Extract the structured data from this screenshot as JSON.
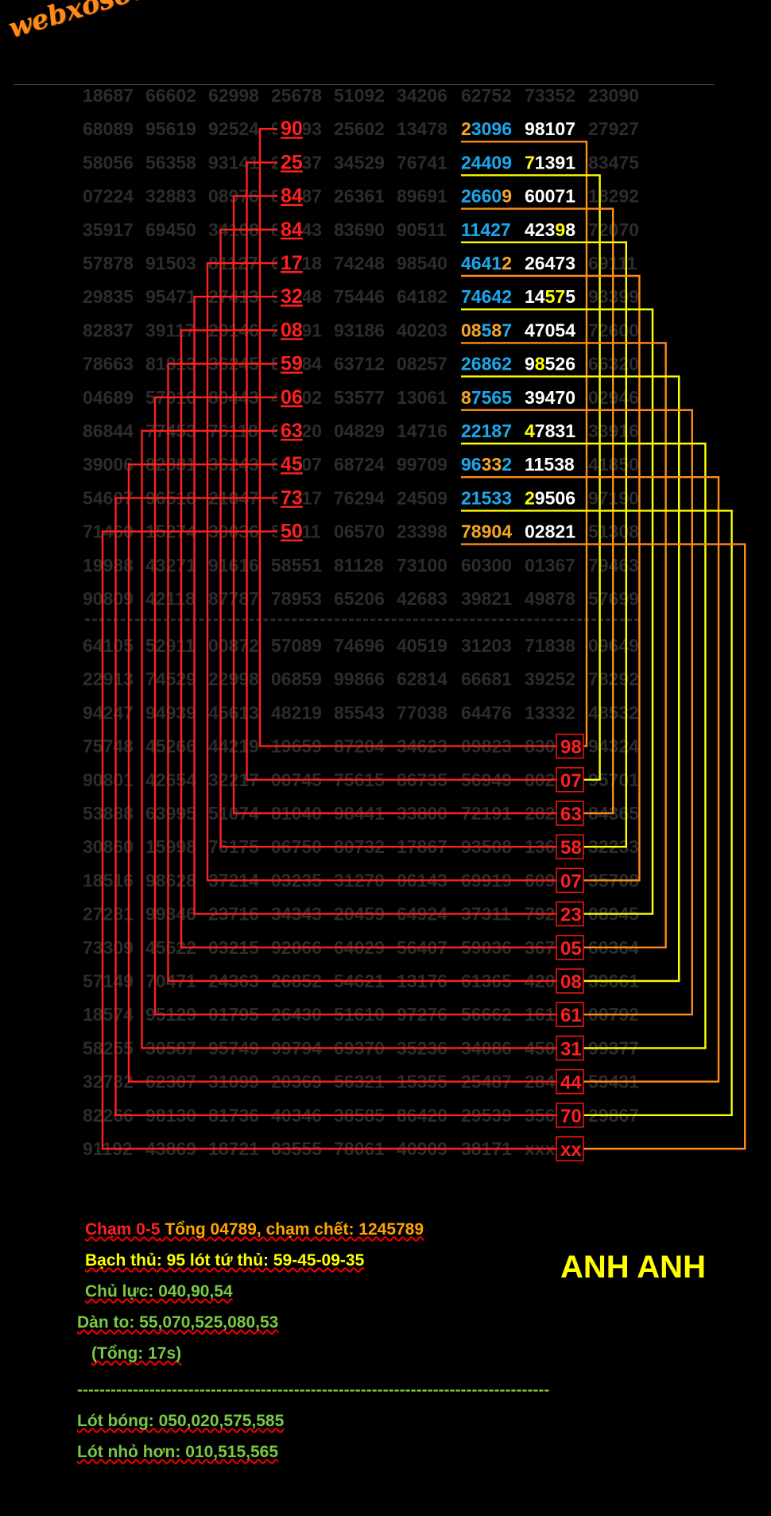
{
  "logo": "webxoso.net",
  "brand": "ANH ANH",
  "colors": {
    "bg": "#000000",
    "grey": "#2c2c2c",
    "red": "#ff2020",
    "box": "#ee1111",
    "orange": "#ff8c1a",
    "yellow": "#ffff00",
    "cyan": "#1aa7ec",
    "gold": "#f5a623",
    "white": "#ffffff",
    "green": "#7ac943"
  },
  "top_grid": [
    [
      "18687",
      "66602",
      "62998",
      "25678",
      "51092",
      "34206",
      "62752",
      "73352",
      "23090"
    ],
    [
      "68089",
      "95619",
      "92524",
      "90493",
      "25602",
      "13478",
      "23096",
      "98107",
      "27927"
    ],
    [
      "58056",
      "56358",
      "93141",
      "25837",
      "34529",
      "76741",
      "24409",
      "71391",
      "83475"
    ],
    [
      "07224",
      "32883",
      "08976",
      "84487",
      "26361",
      "89691",
      "26609",
      "60071",
      "18292"
    ],
    [
      "35917",
      "69450",
      "34108",
      "84443",
      "83690",
      "90511",
      "11427",
      "42398",
      "72070"
    ],
    [
      "57878",
      "91503",
      "81127",
      "61718",
      "74248",
      "98540",
      "46412",
      "26473",
      "69111"
    ],
    [
      "29835",
      "95471",
      "27413",
      "93248",
      "75446",
      "64182",
      "74642",
      "14575",
      "93399"
    ],
    [
      "82837",
      "39117",
      "29146",
      "20891",
      "93186",
      "40203",
      "08587",
      "47054",
      "72600"
    ],
    [
      "78663",
      "81813",
      "36245",
      "85984",
      "63712",
      "08257",
      "26862",
      "98526",
      "66320"
    ],
    [
      "04689",
      "57916",
      "80443",
      "40602",
      "53577",
      "13061",
      "87565",
      "39470",
      "02946"
    ],
    [
      "86844",
      "77453",
      "76118",
      "66320",
      "04829",
      "14716",
      "22187",
      "47831",
      "33916"
    ],
    [
      "39006",
      "82881",
      "36243",
      "84507",
      "68724",
      "99709",
      "96332",
      "11538",
      "41850"
    ],
    [
      "54607",
      "96518",
      "21847",
      "66717",
      "76294",
      "24509",
      "21533",
      "29506",
      "97190"
    ],
    [
      "71460",
      "15274",
      "30036",
      "55011",
      "06570",
      "23398",
      "78904",
      "02821",
      "51308"
    ],
    [
      "19988",
      "43271",
      "91616",
      "58551",
      "81128",
      "73100",
      "60300",
      "01367",
      "79463"
    ],
    [
      "90809",
      "42118",
      "87787",
      "78953",
      "65206",
      "42683",
      "39821",
      "49878",
      "57699"
    ]
  ],
  "bottom_grid": [
    [
      "64105",
      "52911",
      "00872",
      "57089",
      "74696",
      "40519",
      "31203",
      "71838",
      "09649"
    ],
    [
      "22913",
      "74529",
      "22998",
      "06859",
      "99866",
      "62814",
      "66681",
      "39252",
      "78292"
    ],
    [
      "94247",
      "94939",
      "45613",
      "48219",
      "85543",
      "77038",
      "64476",
      "13332",
      "48532"
    ],
    [
      "75748",
      "45266",
      "44219",
      "19659",
      "87204",
      "34623",
      "09823",
      "83098",
      "94324"
    ],
    [
      "90801",
      "42654",
      "32217",
      "00745",
      "75615",
      "86735",
      "56949",
      "00207",
      "95701"
    ],
    [
      "53888",
      "63995",
      "51074",
      "81040",
      "98441",
      "33800",
      "72191",
      "28263",
      "84365"
    ],
    [
      "30860",
      "15998",
      "76175",
      "06750",
      "80732",
      "17867",
      "93508",
      "13658",
      "32233"
    ],
    [
      "18516",
      "98628",
      "37214",
      "03235",
      "31270",
      "06143",
      "69919",
      "60907",
      "35708"
    ],
    [
      "27281",
      "99346",
      "23716",
      "34343",
      "20459",
      "64924",
      "37311",
      "79223",
      "08945"
    ],
    [
      "73309",
      "45622",
      "03215",
      "92066",
      "64029",
      "56407",
      "59036",
      "36705",
      "60364"
    ],
    [
      "57149",
      "70471",
      "24363",
      "26852",
      "54621",
      "13176",
      "61365",
      "42008",
      "39661"
    ],
    [
      "18574",
      "95129",
      "01795",
      "26430",
      "51610",
      "97276",
      "56662",
      "16161",
      "00792"
    ],
    [
      "58255",
      "30587",
      "95749",
      "99794",
      "69370",
      "35236",
      "34086",
      "45031",
      "99377"
    ],
    [
      "32732",
      "62307",
      "31099",
      "20369",
      "56321",
      "15355",
      "25487",
      "28444",
      "59431"
    ],
    [
      "82266",
      "98130",
      "81736",
      "40346",
      "38585",
      "86420",
      "29539",
      "35670",
      "29867"
    ],
    [
      "91192",
      "43869",
      "18721",
      "83555",
      "78061",
      "40909",
      "38171",
      "xxxxx",
      ""
    ]
  ],
  "marks_left": [
    {
      "row": 1,
      "digits": "90"
    },
    {
      "row": 2,
      "digits": "25"
    },
    {
      "row": 3,
      "digits": "84"
    },
    {
      "row": 4,
      "digits": "84"
    },
    {
      "row": 5,
      "digits": "17"
    },
    {
      "row": 6,
      "digits": "32"
    },
    {
      "row": 7,
      "digits": "08"
    },
    {
      "row": 8,
      "digits": "59"
    },
    {
      "row": 9,
      "digits": "06"
    },
    {
      "row": 10,
      "digits": "63"
    },
    {
      "row": 11,
      "digits": "45"
    },
    {
      "row": 12,
      "digits": "73"
    },
    {
      "row": 13,
      "digits": "50"
    }
  ],
  "marks_right": [
    {
      "row": 3,
      "digits": "98"
    },
    {
      "row": 4,
      "digits": "07"
    },
    {
      "row": 5,
      "digits": "63"
    },
    {
      "row": 6,
      "digits": "58"
    },
    {
      "row": 7,
      "digits": "07"
    },
    {
      "row": 8,
      "digits": "23"
    },
    {
      "row": 9,
      "digits": "05"
    },
    {
      "row": 10,
      "digits": "08"
    },
    {
      "row": 11,
      "digits": "61"
    },
    {
      "row": 12,
      "digits": "31"
    },
    {
      "row": 13,
      "digits": "44"
    },
    {
      "row": 14,
      "digits": "70"
    },
    {
      "row": 15,
      "digits": "xx"
    }
  ],
  "notes": [
    {
      "segments": [
        {
          "text": "Chạm 0-5",
          "color": "red"
        },
        {
          "text": " Tổng 04789, chạm chết: 1245789",
          "color": "orange"
        }
      ]
    },
    {
      "segments": [
        {
          "text": "Bạch thủ: 95 lót tứ thủ: 59-45-09-35",
          "color": "yellow"
        }
      ]
    },
    {
      "segments": [
        {
          "text": "Chủ lực: 040,90,54",
          "color": "green"
        }
      ]
    },
    {
      "segments": [
        {
          "text": "Dàn to: 55,070,525,080,53",
          "color": "green"
        }
      ]
    },
    {
      "segments": [
        {
          "text": "(Tổng: 17s)",
          "color": "green"
        }
      ]
    },
    {
      "segments": [
        {
          "text": "-------------------------------------------------------------------------------------",
          "color": "green"
        }
      ]
    },
    {
      "segments": [
        {
          "text": "Lót bóng: 050,020,575,585",
          "color": "green"
        }
      ]
    },
    {
      "segments": [
        {
          "text": "Lót nhỏ hơn: 010,515,565",
          "color": "green"
        }
      ]
    }
  ]
}
